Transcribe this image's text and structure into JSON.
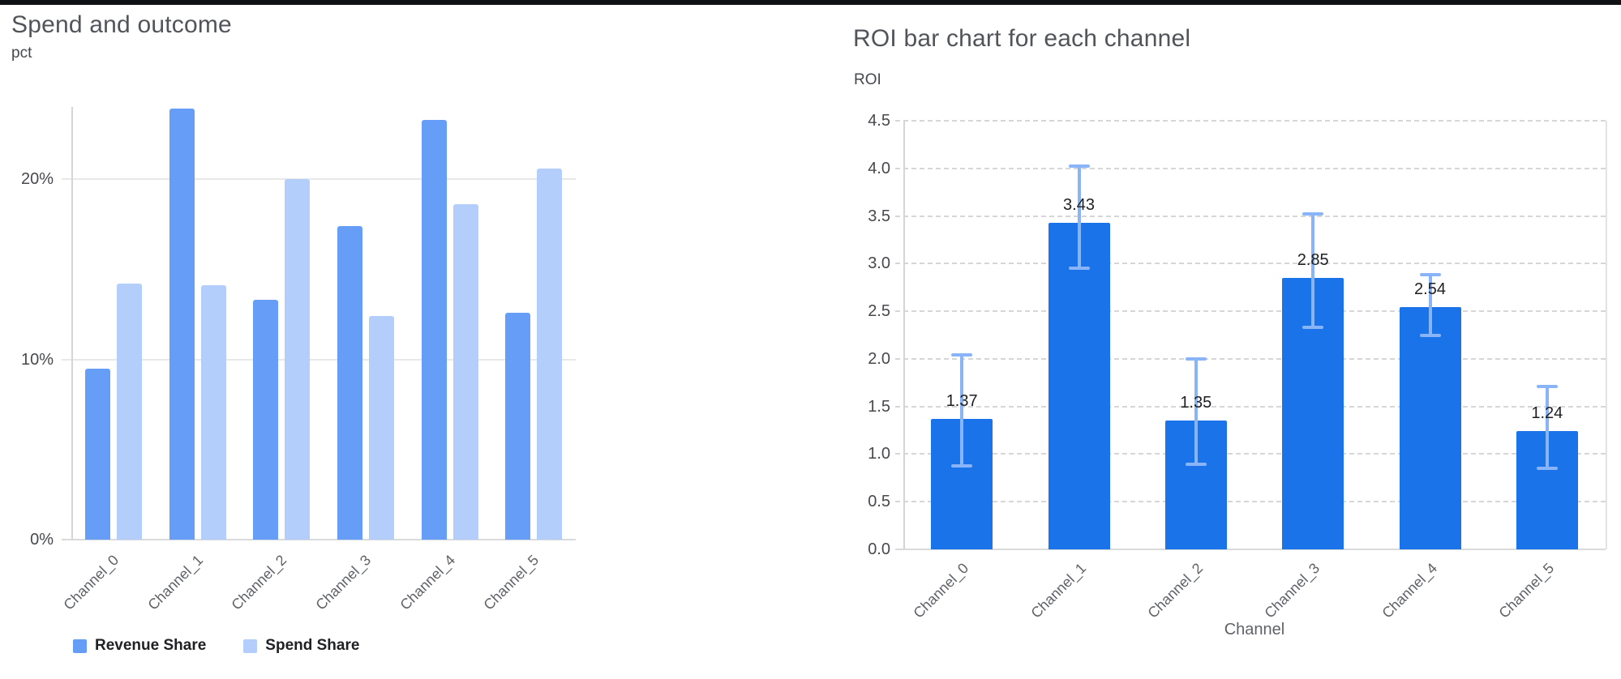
{
  "page": {
    "divider_color": "#101114",
    "background": "#ffffff"
  },
  "chart_data": [
    {
      "type": "bar",
      "title": "Spend and outcome",
      "ylabel": "pct",
      "xlabel": "",
      "categories": [
        "Channel_0",
        "Channel_1",
        "Channel_2",
        "Channel_3",
        "Channel_4",
        "Channel_5"
      ],
      "series": [
        {
          "name": "Revenue Share",
          "color": "#669df6",
          "values": [
            9.5,
            23.9,
            13.3,
            17.4,
            23.3,
            12.6
          ]
        },
        {
          "name": "Spend Share",
          "color": "#b3cefb",
          "values": [
            14.2,
            14.1,
            20.0,
            12.4,
            18.6,
            20.6
          ]
        }
      ],
      "yticks": [
        {
          "v": 0,
          "label": "0%"
        },
        {
          "v": 10,
          "label": "10%"
        },
        {
          "v": 20,
          "label": "20%"
        }
      ],
      "ylim": [
        0,
        24
      ],
      "grid": "solid",
      "legend_position": "bottom"
    },
    {
      "type": "bar",
      "title": "ROI bar chart for each channel",
      "ylabel": "ROI",
      "xlabel": "Channel",
      "categories": [
        "Channel_0",
        "Channel_1",
        "Channel_2",
        "Channel_3",
        "Channel_4",
        "Channel_5"
      ],
      "values": [
        1.37,
        3.43,
        1.35,
        2.85,
        2.54,
        1.24
      ],
      "value_labels": [
        "1.37",
        "3.43",
        "1.35",
        "2.85",
        "2.54",
        "1.24"
      ],
      "error_low": [
        0.88,
        2.95,
        0.89,
        2.33,
        2.25,
        0.85
      ],
      "error_high": [
        2.04,
        4.02,
        2.0,
        3.52,
        2.88,
        1.71
      ],
      "bar_color": "#1a73e8",
      "error_color": "#8ab4f8",
      "yticks": [
        {
          "v": 0.0,
          "label": "0.0"
        },
        {
          "v": 0.5,
          "label": "0.5"
        },
        {
          "v": 1.0,
          "label": "1.0"
        },
        {
          "v": 1.5,
          "label": "1.5"
        },
        {
          "v": 2.0,
          "label": "2.0"
        },
        {
          "v": 2.5,
          "label": "2.5"
        },
        {
          "v": 3.0,
          "label": "3.0"
        },
        {
          "v": 3.5,
          "label": "3.5"
        },
        {
          "v": 4.0,
          "label": "4.0"
        },
        {
          "v": 4.5,
          "label": "4.5"
        }
      ],
      "ylim": [
        0,
        4.5
      ],
      "grid": "dashed",
      "legend_position": "none"
    }
  ]
}
